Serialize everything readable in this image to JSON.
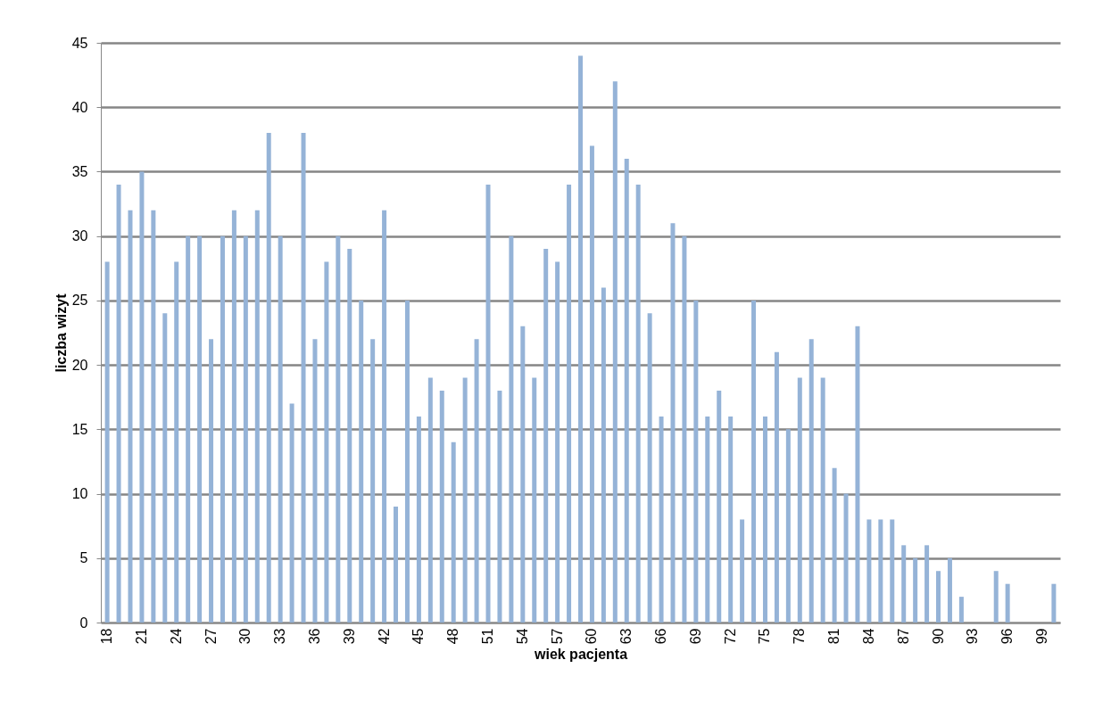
{
  "chart_data": {
    "type": "bar",
    "xlabel": "wiek pacjenta",
    "ylabel": "liczba wizyt",
    "categories": [
      "18",
      null,
      null,
      "21",
      null,
      null,
      "24",
      null,
      null,
      "27",
      null,
      null,
      "30",
      null,
      null,
      "33",
      null,
      null,
      "36",
      null,
      null,
      "39",
      null,
      null,
      "42",
      null,
      null,
      "45",
      null,
      null,
      "48",
      null,
      null,
      "51",
      null,
      null,
      "54",
      null,
      null,
      "57",
      null,
      null,
      "60",
      null,
      null,
      "63",
      null,
      null,
      "66",
      null,
      null,
      "69",
      null,
      null,
      "72",
      null,
      null,
      "75",
      null,
      null,
      "78",
      null,
      null,
      "81",
      null,
      null,
      "84",
      null,
      null,
      "87",
      null,
      null,
      "90",
      null,
      null,
      "93",
      null,
      null,
      "96",
      null,
      null,
      "99",
      null
    ],
    "values": [
      28,
      34,
      32,
      35,
      32,
      24,
      28,
      30,
      30,
      22,
      30,
      32,
      30,
      32,
      38,
      30,
      17,
      38,
      22,
      28,
      30,
      29,
      25,
      22,
      32,
      9,
      25,
      16,
      19,
      18,
      14,
      19,
      22,
      34,
      18,
      30,
      23,
      19,
      29,
      28,
      34,
      44,
      37,
      26,
      42,
      36,
      34,
      24,
      16,
      31,
      30,
      25,
      16,
      18,
      16,
      8,
      25,
      16,
      21,
      15,
      19,
      22,
      19,
      12,
      10,
      23,
      8,
      8,
      8,
      6,
      5,
      6,
      4,
      5,
      2,
      0,
      0,
      4,
      3,
      0,
      0,
      0,
      3
    ],
    "color": "#95b3d7",
    "ylim": [
      0,
      45
    ],
    "yticks": [
      0,
      5,
      10,
      15,
      20,
      25,
      30,
      35,
      40,
      45
    ],
    "grid": "y"
  }
}
